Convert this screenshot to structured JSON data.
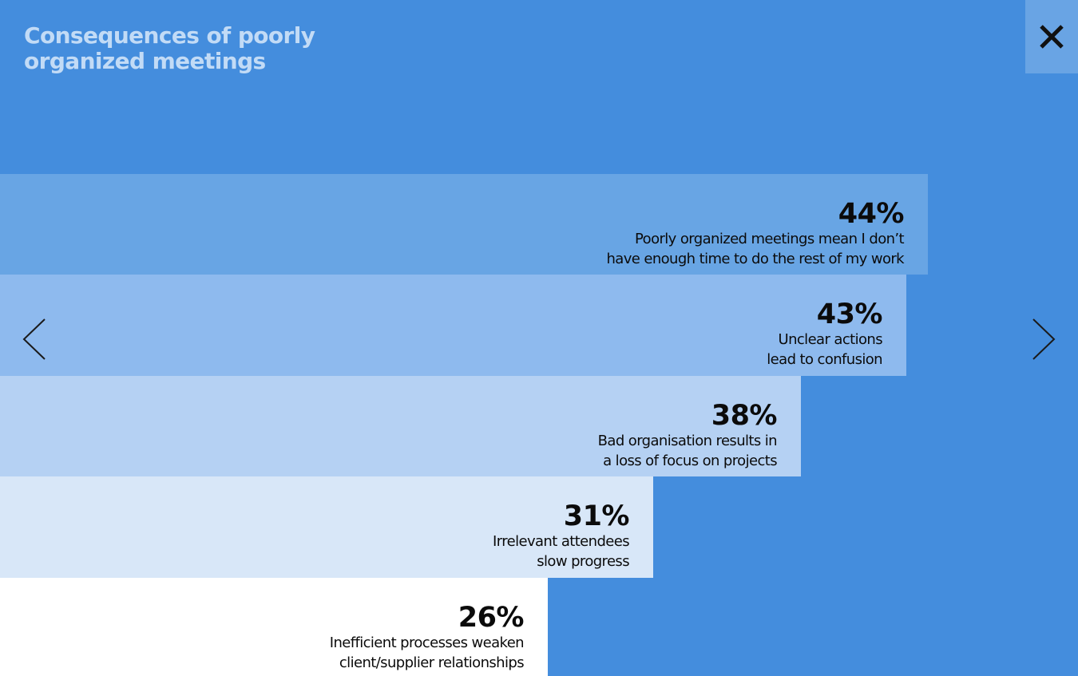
{
  "title": "Consequences of poorly\norganized meetings",
  "controls": {
    "close_icon": "close-icon",
    "prev_icon": "chevron-left-icon",
    "next_icon": "chevron-right-icon"
  },
  "colors": {
    "background": "#448ddd",
    "title": "#c2dbf6",
    "close_button": "#69a4e4",
    "bars": [
      "#68a5e4",
      "#8ebaee",
      "#b5d1f3",
      "#d8e7f8",
      "#ffffff"
    ]
  },
  "chart_data": {
    "type": "bar",
    "orientation": "horizontal",
    "title": "Consequences of poorly\norganized meetings",
    "categories": [
      "Poorly organized meetings mean I don’t\nhave enough time to do the rest of my work",
      "Unclear actions\nlead to confusion",
      "Bad organisation results in\na loss of focus on projects",
      "Irrelevant attendees\nslow progress",
      "Inefficient processes weaken\nclient/supplier relationships"
    ],
    "values": [
      44,
      43,
      38,
      31,
      26
    ],
    "value_labels": [
      "44%",
      "43%",
      "38%",
      "31%",
      "26%"
    ],
    "unit": "%",
    "grid": false
  }
}
